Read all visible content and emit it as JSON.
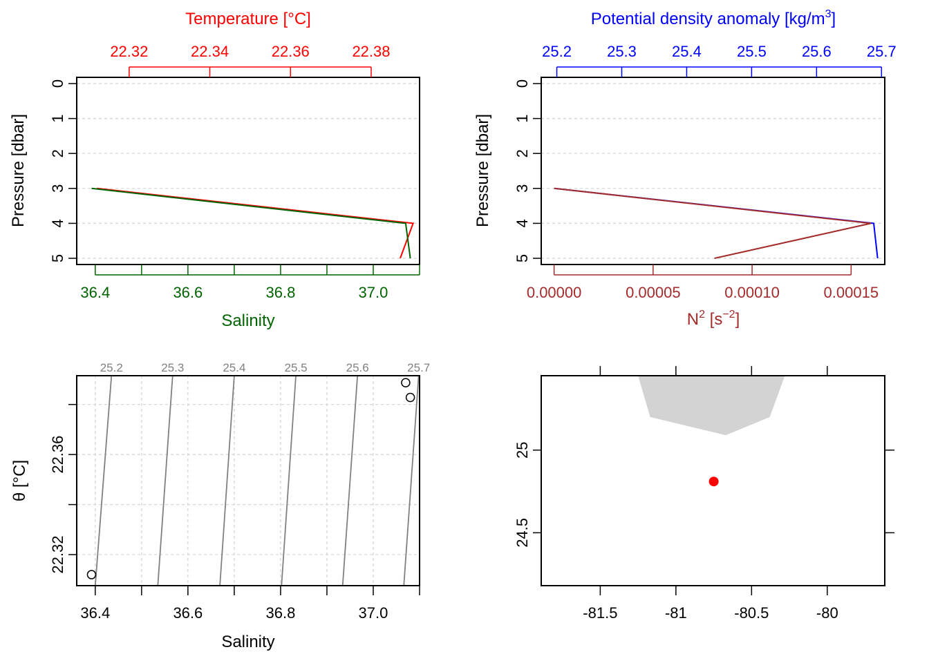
{
  "colors": {
    "temperature": "#ff0000",
    "salinity": "#006400",
    "density": "#0000ff",
    "n2": "#a52a2a",
    "isopycnal": "#808080",
    "coast": "#d3d3d3",
    "station": "#ff0000"
  },
  "chart_data": [
    {
      "type": "line",
      "panel": "temperature-salinity-profile",
      "xlabel_top": "Temperature [°C]",
      "xlabel_bottom": "Salinity",
      "ylabel": "Pressure [dbar]",
      "top_ticks": [
        "22.32",
        "22.34",
        "22.36",
        "22.38"
      ],
      "top_tick_values": [
        22.32,
        22.34,
        22.36,
        22.38
      ],
      "bottom_ticks": [
        "36.4",
        "36.6",
        "36.8",
        "37.0"
      ],
      "bottom_tick_values": [
        36.4,
        36.6,
        36.8,
        37.0
      ],
      "y_ticks": [
        "0",
        "1",
        "2",
        "3",
        "4",
        "5"
      ],
      "y_tick_values": [
        0,
        1,
        2,
        3,
        4,
        5
      ],
      "xlim_top": [
        22.307,
        22.392
      ],
      "xlim_bottom": [
        36.36,
        37.1
      ],
      "ylim": [
        0,
        5
      ],
      "grid": true,
      "series": [
        {
          "name": "Temperature",
          "x": [
            22.312,
            22.3904,
            22.3872
          ],
          "y": [
            3,
            4,
            5
          ]
        },
        {
          "name": "Salinity",
          "x": [
            36.392,
            37.07,
            37.08
          ],
          "y": [
            3,
            4,
            5
          ]
        }
      ]
    },
    {
      "type": "line",
      "panel": "density-n2-profile",
      "xlabel_top": "Potential density anomaly [kg/m",
      "xlabel_top_sup": "3",
      "xlabel_top_end": "]",
      "xlabel_bottom": "N",
      "xlabel_bottom_sup": "2",
      "xlabel_bottom_mid": " [s",
      "xlabel_bottom_sup2": "−2",
      "xlabel_bottom_end": "]",
      "ylabel": "Pressure [dbar]",
      "top_ticks": [
        "25.2",
        "25.3",
        "25.4",
        "25.5",
        "25.6",
        "25.7"
      ],
      "top_tick_values": [
        25.2,
        25.3,
        25.4,
        25.5,
        25.6,
        25.7
      ],
      "bottom_ticks": [
        "0.00000",
        "0.00005",
        "0.00010",
        "0.00015"
      ],
      "bottom_tick_values": [
        0,
        5e-05,
        0.0001,
        0.00015
      ],
      "y_ticks": [
        "0",
        "1",
        "2",
        "3",
        "4",
        "5"
      ],
      "y_tick_values": [
        0,
        1,
        2,
        3,
        4,
        5
      ],
      "xlim_top": [
        25.176,
        25.705
      ],
      "xlim_bottom": [
        -6.5e-06,
        0.000167
      ],
      "ylim": [
        0,
        5
      ],
      "grid": true,
      "series": [
        {
          "name": "Potential density anomaly",
          "x": [
            25.196,
            25.688,
            25.694
          ],
          "y": [
            3,
            4,
            5
          ]
        },
        {
          "name": "N2",
          "x": [
            0,
            0.00016,
            8.1e-05
          ],
          "y": [
            3,
            4,
            5
          ]
        }
      ]
    },
    {
      "type": "scatter",
      "panel": "ts-diagram",
      "xlabel": "Salinity",
      "ylabel": "θ [°C]",
      "x_ticks": [
        "36.4",
        "36.6",
        "36.8",
        "37.0"
      ],
      "x_tick_values": [
        36.4,
        36.6,
        36.8,
        37.0
      ],
      "y_ticks": [
        "22.32",
        "22.36"
      ],
      "y_tick_values": [
        22.32,
        22.36
      ],
      "xlim": [
        36.36,
        37.1
      ],
      "ylim": [
        22.3076,
        22.3915
      ],
      "grid": true,
      "points": {
        "x": [
          36.392,
          37.07,
          37.08
        ],
        "y": [
          22.312,
          22.3887,
          22.3828
        ]
      },
      "isopycnals": [
        {
          "label": "25.2",
          "top_s": 36.435,
          "bottom_s": 36.4
        },
        {
          "label": "25.3",
          "top_s": 36.567,
          "bottom_s": 36.535
        },
        {
          "label": "25.4",
          "top_s": 36.7,
          "bottom_s": 36.669
        },
        {
          "label": "25.5",
          "top_s": 36.833,
          "bottom_s": 36.802
        },
        {
          "label": "25.6",
          "top_s": 36.966,
          "bottom_s": 36.934
        },
        {
          "label": "25.7",
          "top_s": 37.098,
          "bottom_s": 37.066
        }
      ]
    },
    {
      "type": "scatter",
      "panel": "station-map",
      "x_ticks": [
        "-81.5",
        "-81",
        "-80.5",
        "-80"
      ],
      "x_tick_values": [
        -81.5,
        -81,
        -80.5,
        -80
      ],
      "y_ticks": [
        "24.5",
        "25"
      ],
      "y_tick_values": [
        24.5,
        25
      ],
      "xlim": [
        -81.89,
        -79.62
      ],
      "ylim": [
        24.18,
        25.45
      ],
      "coastline": {
        "lon": [
          -81.25,
          -81.17,
          -80.67,
          -80.38,
          -80.28
        ],
        "lat": [
          25.45,
          25.2,
          25.09,
          25.2,
          25.45
        ]
      },
      "station": {
        "lon": [
          -80.75
        ],
        "lat": [
          24.81
        ]
      }
    }
  ]
}
